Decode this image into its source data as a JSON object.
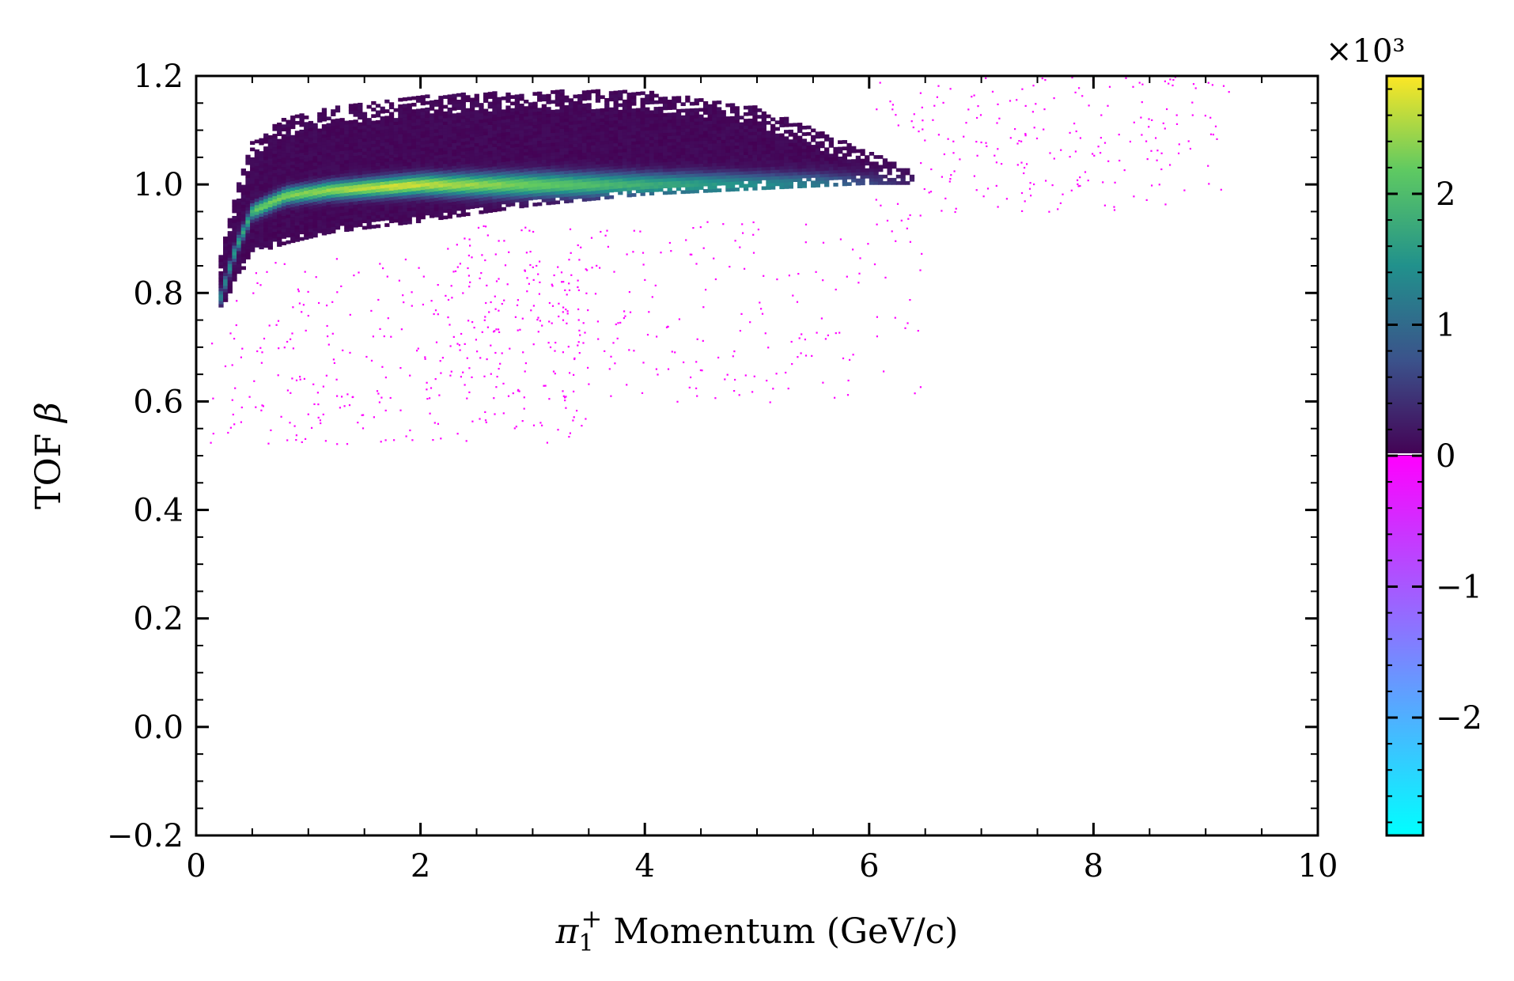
{
  "chart_data": {
    "type": "heatmap",
    "title": "",
    "xlabel": "π₁⁺ Momentum (GeV/c)",
    "ylabel": "TOF β",
    "xlim": [
      0,
      10
    ],
    "ylim": [
      -0.2,
      1.2
    ],
    "x_ticks": [
      0,
      2,
      4,
      6,
      8,
      10
    ],
    "x_tick_labels": [
      "0",
      "2",
      "4",
      "6",
      "8",
      "10"
    ],
    "y_ticks": [
      -0.2,
      0.0,
      0.2,
      0.4,
      0.6,
      0.8,
      1.0,
      1.2
    ],
    "y_tick_labels": [
      "−0.2",
      "0.0",
      "0.2",
      "0.4",
      "0.6",
      "0.8",
      "1.0",
      "1.2"
    ],
    "grid": false,
    "colorbar": {
      "multiplier_label": "×10³",
      "range": [
        -2.9,
        2.9
      ],
      "ticks": [
        -2,
        -1,
        0,
        1,
        2
      ],
      "tick_labels": [
        "−2",
        "−1",
        "0",
        "1",
        "2"
      ],
      "colors_negative": [
        "#00ffff",
        "#ff00ff"
      ],
      "colors_positive": [
        "#440154",
        "#3b528b",
        "#21918c",
        "#5ec962",
        "#fde725"
      ]
    },
    "main_band": {
      "description_x": [
        0.2,
        0.35,
        0.5,
        0.8,
        1.2,
        2.0,
        3.0,
        4.0,
        5.0,
        6.0,
        6.4
      ],
      "peak_beta": [
        0.78,
        0.88,
        0.95,
        0.98,
        0.99,
        1.0,
        1.0,
        1.0,
        1.0,
        1.0,
        1.0
      ],
      "upper_edge": [
        0.85,
        0.98,
        1.08,
        1.12,
        1.14,
        1.16,
        1.17,
        1.17,
        1.14,
        1.06,
        1.02
      ],
      "lower_edge": [
        0.76,
        0.82,
        0.87,
        0.89,
        0.91,
        0.93,
        0.96,
        0.98,
        0.99,
        1.0,
        1.0
      ],
      "peak_count_thousands": 2.9
    },
    "scatter_negative": {
      "color": "#ff00ff",
      "regions": [
        {
          "x_range": [
            0.1,
            3.5
          ],
          "y_range": [
            0.52,
            0.88
          ]
        },
        {
          "x_range": [
            2.0,
            6.5
          ],
          "y_range": [
            0.6,
            0.95
          ]
        },
        {
          "x_range": [
            6.0,
            9.2
          ],
          "y_range": [
            0.95,
            1.2
          ]
        }
      ]
    }
  }
}
